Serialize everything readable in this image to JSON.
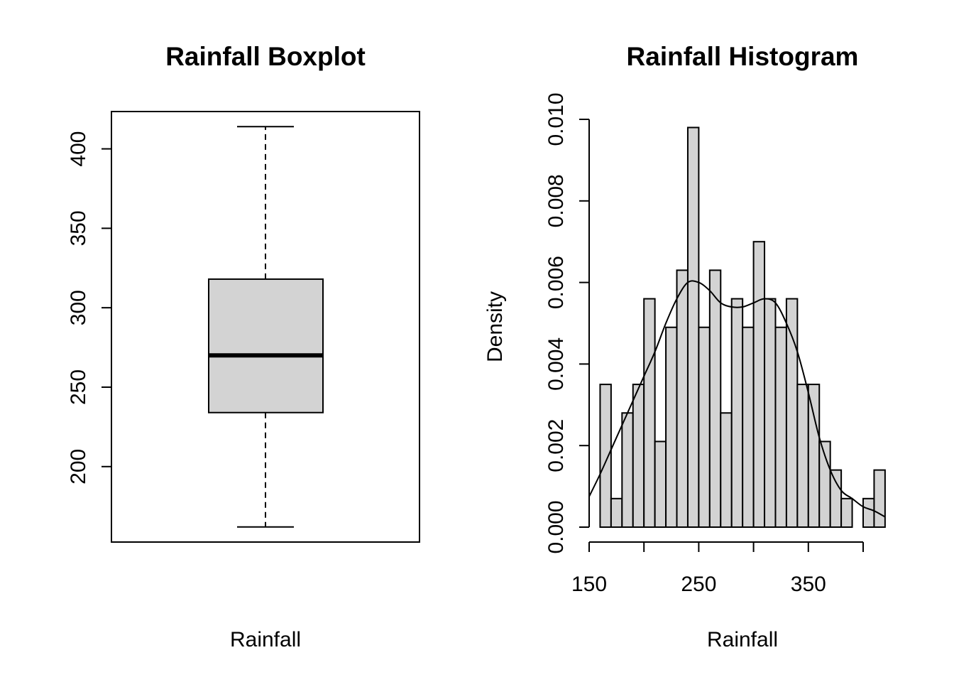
{
  "chart_data": [
    {
      "type": "boxplot",
      "title": "Rainfall Boxplot",
      "xlabel": "Rainfall",
      "ylabel": "",
      "ylim": [
        152.5,
        423.5
      ],
      "yticks": [
        200,
        250,
        300,
        350,
        400
      ],
      "stats": {
        "min": 162,
        "q1": 234,
        "median": 270,
        "q3": 318,
        "max": 414
      },
      "box_color": "#d3d3d3"
    },
    {
      "type": "histogram",
      "title": "Rainfall Histogram",
      "xlabel": "Rainfall",
      "ylabel": "Density",
      "xlim": [
        150,
        420
      ],
      "ylim": [
        0,
        0.0104
      ],
      "xticks": [
        150,
        250,
        350
      ],
      "xtick_marks": [
        150,
        200,
        250,
        300,
        350,
        400
      ],
      "yticks": [
        "0.000",
        "0.002",
        "0.004",
        "0.006",
        "0.008",
        "0.010"
      ],
      "bin_start": 160,
      "bin_width": 10,
      "values": [
        0.0035,
        0.0007,
        0.0028,
        0.0035,
        0.0056,
        0.0021,
        0.0049,
        0.0063,
        0.0098,
        0.0049,
        0.0063,
        0.0028,
        0.0056,
        0.0049,
        0.007,
        0.0056,
        0.0049,
        0.0056,
        0.0035,
        0.0035,
        0.0021,
        0.0014,
        0.0007,
        0.0,
        0.0007,
        0.0014
      ],
      "density_curve": {
        "x": [
          150,
          160,
          170,
          180,
          190,
          200,
          210,
          220,
          230,
          240,
          250,
          260,
          270,
          280,
          290,
          300,
          310,
          320,
          330,
          340,
          350,
          360,
          370,
          380,
          390,
          400,
          410,
          420
        ],
        "y": [
          0.00075,
          0.0013,
          0.0019,
          0.0025,
          0.0031,
          0.0037,
          0.0043,
          0.005,
          0.0056,
          0.006,
          0.006,
          0.0058,
          0.0055,
          0.0054,
          0.0054,
          0.0055,
          0.0056,
          0.0055,
          0.005,
          0.0043,
          0.0033,
          0.0022,
          0.0014,
          0.0009,
          0.0007,
          0.0005,
          0.0004,
          0.00025
        ]
      },
      "bar_color": "#d3d3d3"
    }
  ]
}
